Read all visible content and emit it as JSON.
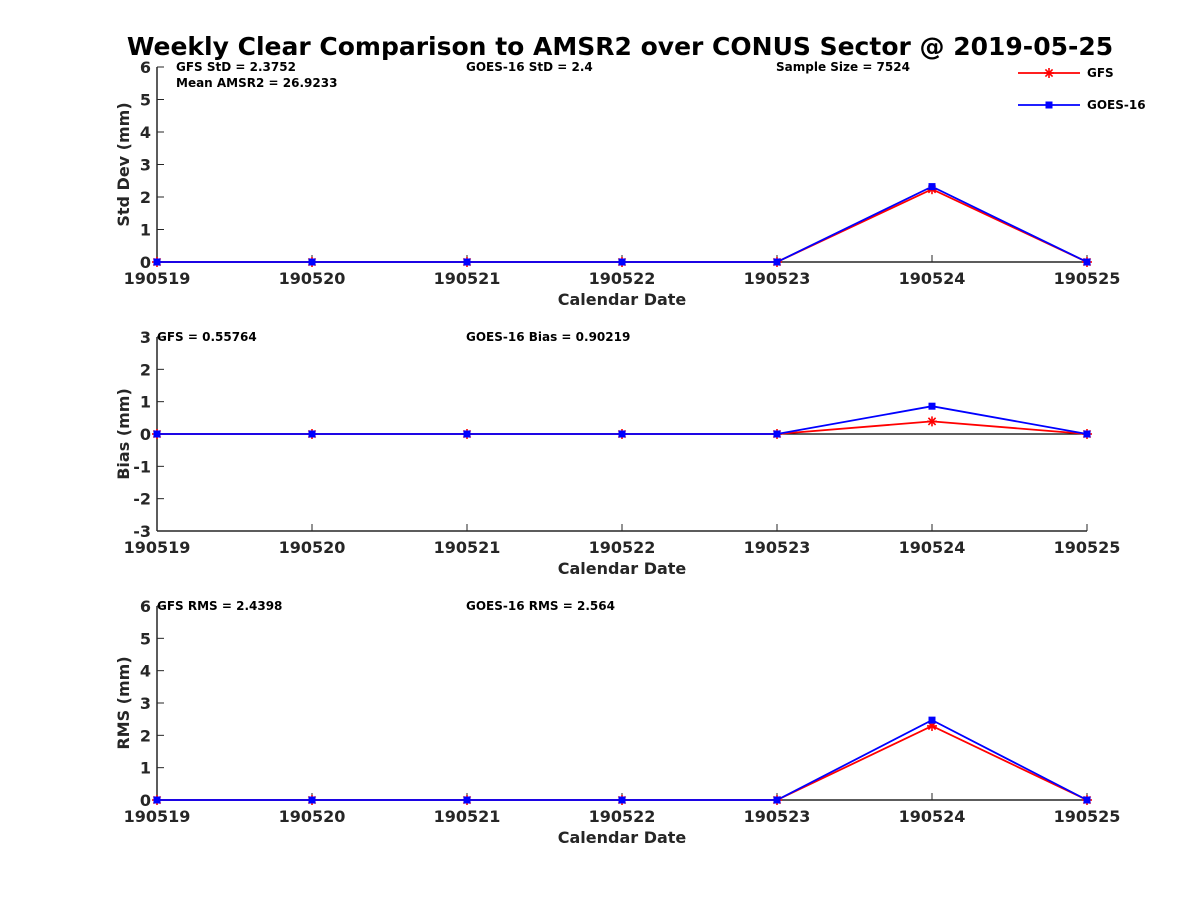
{
  "figure": {
    "title": "Weekly Clear Comparison to AMSR2 over CONUS Sector @ 2019-05-25"
  },
  "legend": {
    "placement": "top-right",
    "entries": [
      {
        "name": "GFS",
        "color": "#ff0000",
        "marker": "asterisk"
      },
      {
        "name": "GOES-16",
        "color": "#0000ff",
        "marker": "square"
      }
    ]
  },
  "chart_data": [
    {
      "type": "line",
      "title": "",
      "xlabel": "Calendar Date",
      "ylabel": "Std Dev (mm)",
      "categories": [
        "190519",
        "190520",
        "190521",
        "190522",
        "190523",
        "190524",
        "190525"
      ],
      "ylim": [
        0,
        6
      ],
      "yticks": [
        "0",
        "1",
        "2",
        "3",
        "4",
        "5",
        "6"
      ],
      "zero_line": false,
      "annotations": [
        {
          "text": "GFS StD = 2.3752",
          "anchor": "left"
        },
        {
          "text": "Mean AMSR2 = 26.9233",
          "anchor": "left"
        },
        {
          "text": "GOES-16 StD = 2.4",
          "anchor": "middle"
        },
        {
          "text": "Sample Size = 7524",
          "anchor": "right"
        }
      ],
      "series": [
        {
          "name": "GFS",
          "color": "#ff0000",
          "values": [
            0,
            0,
            0,
            0,
            0,
            2.24,
            0
          ]
        },
        {
          "name": "GOES-16",
          "color": "#0000ff",
          "values": [
            0,
            0,
            0,
            0,
            0,
            2.32,
            0
          ]
        }
      ]
    },
    {
      "type": "line",
      "title": "",
      "xlabel": "Calendar Date",
      "ylabel": "Bias (mm)",
      "categories": [
        "190519",
        "190520",
        "190521",
        "190522",
        "190523",
        "190524",
        "190525"
      ],
      "ylim": [
        -3,
        3
      ],
      "yticks": [
        "-3",
        "-2",
        "-1",
        "0",
        "1",
        "2",
        "3"
      ],
      "zero_line": true,
      "annotations": [
        {
          "text": "GFS = 0.55764",
          "anchor": "left"
        },
        {
          "text": "GOES-16 Bias  = 0.90219",
          "anchor": "middle"
        }
      ],
      "series": [
        {
          "name": "GFS",
          "color": "#ff0000",
          "values": [
            0,
            0,
            0,
            0,
            0,
            0.39,
            0
          ]
        },
        {
          "name": "GOES-16",
          "color": "#0000ff",
          "values": [
            0,
            0,
            0,
            0,
            0,
            0.86,
            0
          ]
        }
      ]
    },
    {
      "type": "line",
      "title": "",
      "xlabel": "Calendar Date",
      "ylabel": "RMS (mm)",
      "categories": [
        "190519",
        "190520",
        "190521",
        "190522",
        "190523",
        "190524",
        "190525"
      ],
      "ylim": [
        0,
        6
      ],
      "yticks": [
        "0",
        "1",
        "2",
        "3",
        "4",
        "5",
        "6"
      ],
      "zero_line": false,
      "annotations": [
        {
          "text": "GFS RMS = 2.4398",
          "anchor": "left"
        },
        {
          "text": "GOES-16 RMS = 2.564",
          "anchor": "middle"
        }
      ],
      "series": [
        {
          "name": "GFS",
          "color": "#ff0000",
          "values": [
            0,
            0,
            0,
            0,
            0,
            2.29,
            0
          ]
        },
        {
          "name": "GOES-16",
          "color": "#0000ff",
          "values": [
            0,
            0,
            0,
            0,
            0,
            2.47,
            0
          ]
        }
      ]
    }
  ]
}
